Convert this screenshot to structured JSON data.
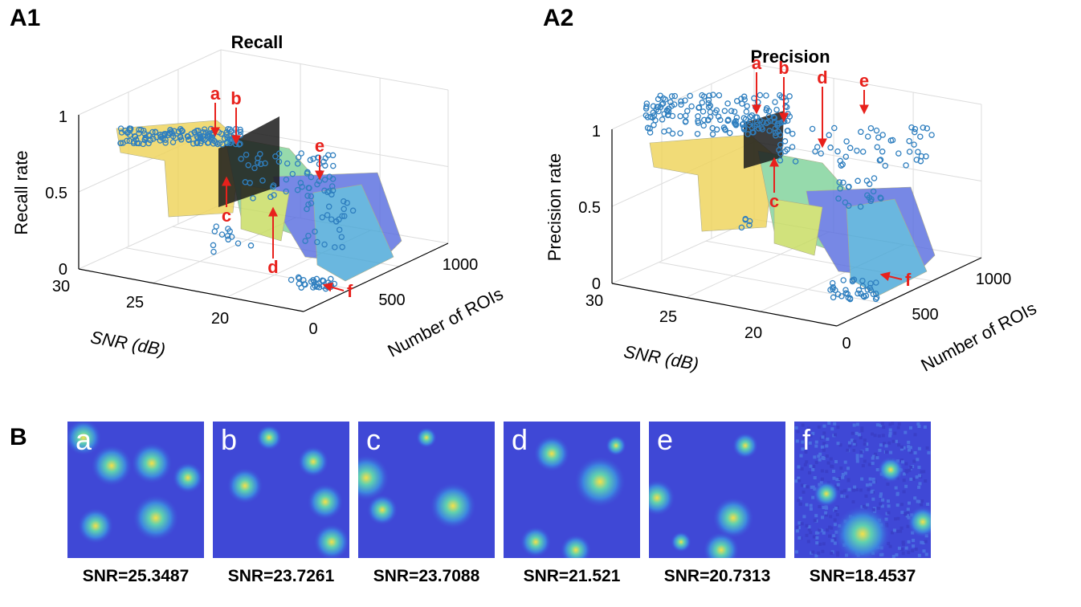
{
  "panels": {
    "a1": "A1",
    "a2": "A2",
    "b": "B"
  },
  "chart_data": [
    {
      "type": "scatter",
      "panel": "A1",
      "title": "Recall",
      "zlabel": "Recall rate",
      "xlabel": "SNR (dB)",
      "ylabel": "Number of ROIs",
      "x_ticks": [
        "30",
        "25",
        "20"
      ],
      "y_ticks": [
        "0",
        "500",
        "1000"
      ],
      "z_ticks": [
        "0",
        "0.5",
        "1"
      ],
      "xlim": [
        17,
        30
      ],
      "ylim": [
        0,
        1100
      ],
      "zlim": [
        0,
        1
      ],
      "grid": true,
      "surface": true,
      "annotations": [
        "a",
        "b",
        "c",
        "d",
        "e",
        "f"
      ],
      "marker_color": "#2f7fbf"
    },
    {
      "type": "scatter",
      "panel": "A2",
      "title": "Precision",
      "zlabel": "Precision rate",
      "xlabel": "SNR (dB)",
      "ylabel": "Number of ROIs",
      "x_ticks": [
        "30",
        "25",
        "20"
      ],
      "y_ticks": [
        "0",
        "500",
        "1000"
      ],
      "z_ticks": [
        "0",
        "0.5",
        "1"
      ],
      "xlim": [
        17,
        30
      ],
      "ylim": [
        0,
        1100
      ],
      "zlim": [
        0,
        1
      ],
      "grid": true,
      "surface": true,
      "annotations": [
        "a",
        "b",
        "c",
        "d",
        "e",
        "f"
      ],
      "marker_color": "#2f7fbf"
    }
  ],
  "annotation_color": "#e8211c",
  "examples": [
    {
      "letter": "a",
      "snr_label": "SNR=25.3487"
    },
    {
      "letter": "b",
      "snr_label": "SNR=23.7261"
    },
    {
      "letter": "c",
      "snr_label": "SNR=23.7088"
    },
    {
      "letter": "d",
      "snr_label": "SNR=21.521"
    },
    {
      "letter": "e",
      "snr_label": "SNR=20.7313"
    },
    {
      "letter": "f",
      "snr_label": "SNR=18.4537"
    }
  ]
}
